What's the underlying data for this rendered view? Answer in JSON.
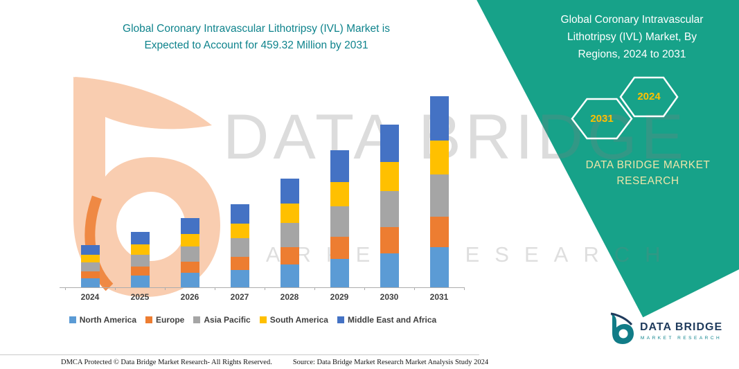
{
  "colors": {
    "panel_teal": "#17A289",
    "title_teal": "#0E838C",
    "badge_yellow": "#FFC000",
    "brand_cream": "#EDE5A9",
    "logo_navy": "#1F3B5C"
  },
  "header": {
    "title": "Global Coronary Intravascular Lithotripsy (IVL) Market is\nExpected to Account for 459.32 Million by 2031"
  },
  "side_panel": {
    "title": "Global Coronary Intravascular\nLithotripsy (IVL) Market, By\nRegions, 2024 to 2031",
    "badge_2031": "2031",
    "badge_2024": "2024",
    "brand": "DATA BRIDGE MARKET\nRESEARCH"
  },
  "watermark": {
    "brand": "DATA BRIDGE",
    "sub": "MARKET RESEARCH"
  },
  "chart_data": {
    "type": "bar",
    "stacked": true,
    "title": "Global Coronary Intravascular Lithotripsy (IVL) Market is Expected to Account for 459.32 Million by 2031",
    "unit": "Million",
    "categories": [
      "2024",
      "2025",
      "2026",
      "2027",
      "2028",
      "2029",
      "2030",
      "2031"
    ],
    "series": [
      {
        "name": "North America",
        "color": "#5B9BD5",
        "values": [
          21.5,
          28,
          35,
          42,
          55,
          69,
          82,
          96
        ]
      },
      {
        "name": "Europe",
        "color": "#ED7D31",
        "values": [
          16.5,
          21.5,
          27,
          32,
          42,
          53,
          63,
          74
        ]
      },
      {
        "name": "Asia Pacific",
        "color": "#A5A5A5",
        "values": [
          22.5,
          29.5,
          37,
          44,
          58,
          72.5,
          86,
          101
        ]
      },
      {
        "name": "South America",
        "color": "#FFC000",
        "values": [
          18.5,
          24,
          30,
          36,
          47,
          59.5,
          70.5,
          82
        ]
      },
      {
        "name": "Middle East and Africa",
        "color": "#4472C4",
        "values": [
          23,
          31,
          38,
          46,
          60,
          76,
          90.5,
          106.32
        ]
      }
    ],
    "totals": [
      102,
      134,
      167,
      200,
      262,
      330,
      392,
      459.32
    ],
    "values_estimated": true,
    "ylim": [
      0,
      500
    ],
    "grid": false,
    "legend_position": "bottom"
  },
  "footer": {
    "dmca": "DMCA Protected © Data Bridge Market Research-  All Rights Reserved.",
    "source": "Source: Data Bridge Market Research  Market Analysis Study 2024",
    "logo_title": "DATA BRIDGE",
    "logo_subtitle": "MARKET RESEARCH"
  }
}
